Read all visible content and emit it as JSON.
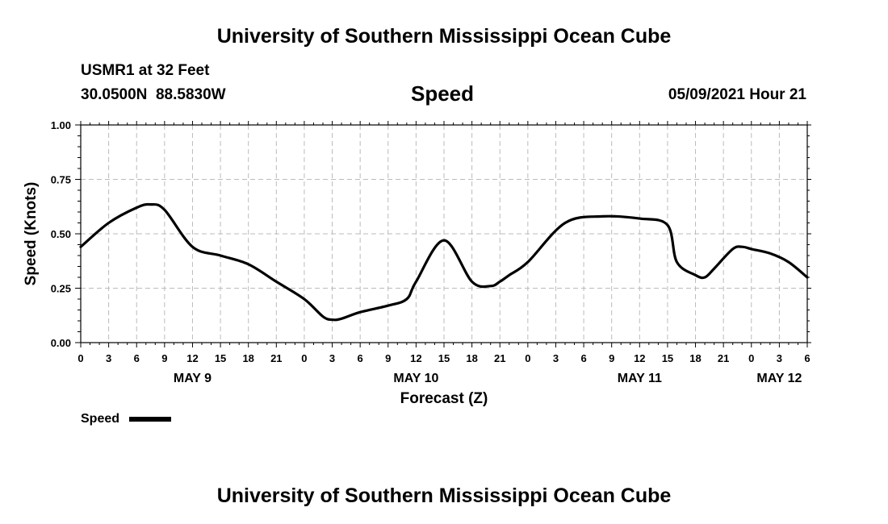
{
  "header": {
    "top_title": "University of Southern Mississippi Ocean Cube",
    "station": "USMR1 at 32 Feet",
    "coords": "30.0500N  88.5830W",
    "variable": "Speed",
    "datetime": "05/09/2021 Hour 21",
    "bottom_title": "University of Southern Mississippi Ocean Cube"
  },
  "legend": {
    "label": "Speed"
  },
  "colors": {
    "line": "#000000",
    "grid": "#bbbbbb"
  },
  "chart_data": {
    "type": "line",
    "title": "Speed",
    "xlabel": "Forecast (Z)",
    "ylabel": "Speed (Knots)",
    "xlim": [
      0,
      78
    ],
    "ylim": [
      0,
      1
    ],
    "yticks": [
      0,
      0.25,
      0.5,
      0.75,
      1
    ],
    "ytick_labels": [
      "0.00",
      "0.25",
      "0.50",
      "0.75",
      "1.00"
    ],
    "xticks": [
      0,
      3,
      6,
      9,
      12,
      15,
      18,
      21,
      24,
      27,
      30,
      33,
      36,
      39,
      42,
      45,
      48,
      51,
      54,
      57,
      60,
      63,
      66,
      69,
      72,
      75,
      78
    ],
    "xtick_labels": [
      "0",
      "3",
      "6",
      "9",
      "12",
      "15",
      "18",
      "21",
      "0",
      "3",
      "6",
      "9",
      "12",
      "15",
      "18",
      "21",
      "0",
      "3",
      "6",
      "9",
      "12",
      "15",
      "18",
      "21",
      "0",
      "3",
      "6"
    ],
    "day_labels": [
      {
        "label": "MAY 9",
        "x": 12
      },
      {
        "label": "MAY 10",
        "x": 36
      },
      {
        "label": "MAY 11",
        "x": 60
      },
      {
        "label": "MAY 12",
        "x": 75
      }
    ],
    "grid": true,
    "series": [
      {
        "name": "Speed",
        "x": [
          0,
          3,
          6,
          7.5,
          9,
          12,
          15,
          18,
          21,
          24,
          26,
          27,
          28,
          30,
          33,
          35,
          36,
          39,
          42,
          44,
          45,
          46,
          48,
          52,
          56,
          60,
          63,
          64,
          66,
          67,
          68,
          70,
          71,
          72,
          74,
          76,
          78
        ],
        "values": [
          0.44,
          0.55,
          0.62,
          0.635,
          0.61,
          0.44,
          0.4,
          0.36,
          0.28,
          0.2,
          0.12,
          0.105,
          0.11,
          0.14,
          0.17,
          0.2,
          0.28,
          0.47,
          0.28,
          0.26,
          0.28,
          0.31,
          0.37,
          0.55,
          0.58,
          0.57,
          0.54,
          0.37,
          0.31,
          0.3,
          0.34,
          0.43,
          0.44,
          0.43,
          0.41,
          0.37,
          0.3
        ]
      }
    ]
  }
}
